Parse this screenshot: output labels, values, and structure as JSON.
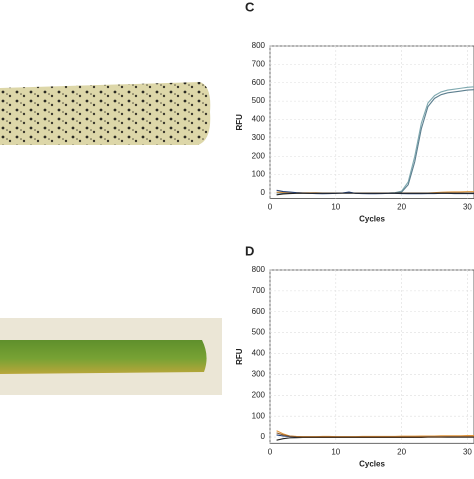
{
  "chart_data": [
    {
      "type": "line",
      "panel": "C",
      "x_label": "Cycles",
      "y_label": "RFU",
      "x": [
        1,
        2,
        3,
        4,
        5,
        6,
        7,
        8,
        9,
        10,
        11,
        12,
        13,
        14,
        15,
        16,
        17,
        18,
        19,
        20,
        21,
        22,
        23,
        24,
        25,
        26,
        27,
        28,
        29,
        30,
        31
      ],
      "series": [
        {
          "color": "#7fa9b0",
          "values": [
            0,
            0,
            0,
            0,
            0,
            0,
            0,
            0,
            0,
            0,
            0,
            0,
            0,
            0,
            0,
            0,
            0,
            0,
            2,
            10,
            60,
            200,
            380,
            490,
            530,
            550,
            560,
            565,
            570,
            575,
            578
          ]
        },
        {
          "color": "#5d7f8f",
          "values": [
            0,
            0,
            0,
            0,
            0,
            0,
            0,
            0,
            0,
            0,
            0,
            0,
            0,
            0,
            0,
            0,
            0,
            0,
            1,
            5,
            45,
            170,
            350,
            470,
            515,
            535,
            545,
            550,
            555,
            560,
            562
          ]
        },
        {
          "color": "#e0953a",
          "values": [
            5,
            3,
            2,
            2,
            1,
            1,
            1,
            0,
            0,
            0,
            0,
            0,
            0,
            0,
            0,
            0,
            0,
            0,
            0,
            0,
            0,
            0,
            0,
            0,
            2,
            4,
            5,
            6,
            6,
            7,
            7
          ]
        },
        {
          "color": "#1f3f7a",
          "values": [
            15,
            8,
            5,
            2,
            0,
            -2,
            -3,
            -4,
            -3,
            -2,
            0,
            5,
            -2,
            -3,
            -4,
            -4,
            -3,
            -2,
            -2,
            -3,
            -4,
            -4,
            -4,
            -3,
            -3,
            -2,
            -2,
            -3,
            -3,
            -3,
            -3
          ]
        },
        {
          "color": "#222222",
          "values": [
            -10,
            -5,
            -3,
            -2,
            -2,
            -2,
            -1,
            -1,
            -1,
            -1,
            -1,
            -1,
            -1,
            -1,
            -1,
            -1,
            -1,
            -1,
            -1,
            -1,
            -1,
            -1,
            -1,
            -1,
            -1,
            -1,
            -1,
            -1,
            -1,
            -1,
            -1
          ]
        }
      ],
      "xlim": [
        0,
        31
      ],
      "xticks": [
        0,
        10,
        20,
        30
      ],
      "ylim": [
        -30,
        800
      ],
      "yticks": [
        0,
        100,
        200,
        300,
        400,
        500,
        600,
        700,
        800
      ],
      "grid": true
    },
    {
      "type": "line",
      "panel": "D",
      "x_label": "Cycles",
      "y_label": "RFU",
      "x": [
        1,
        2,
        3,
        4,
        5,
        6,
        7,
        8,
        9,
        10,
        11,
        12,
        13,
        14,
        15,
        16,
        17,
        18,
        19,
        20,
        21,
        22,
        23,
        24,
        25,
        26,
        27,
        28,
        29,
        30,
        31
      ],
      "series": [
        {
          "color": "#e0953a",
          "values": [
            30,
            15,
            5,
            3,
            2,
            2,
            2,
            3,
            3,
            2,
            2,
            2,
            2,
            3,
            3,
            3,
            3,
            3,
            3,
            4,
            4,
            4,
            5,
            5,
            5,
            6,
            6,
            6,
            6,
            7,
            7
          ]
        },
        {
          "color": "#1f3f7a",
          "values": [
            10,
            5,
            2,
            0,
            -1,
            -1,
            -1,
            -1,
            -1,
            -1,
            0,
            0,
            0,
            0,
            0,
            0,
            0,
            0,
            0,
            0,
            0,
            0,
            0,
            1,
            1,
            1,
            2,
            2,
            2,
            2,
            2
          ]
        },
        {
          "color": "#222222",
          "values": [
            -15,
            -8,
            -4,
            -3,
            -2,
            -2,
            -2,
            -2,
            -2,
            -2,
            -2,
            -2,
            -2,
            -2,
            -2,
            -2,
            -2,
            -2,
            -2,
            -2,
            -2,
            -2,
            -2,
            -1,
            -1,
            -1,
            -1,
            -1,
            -1,
            -1,
            -1
          ]
        },
        {
          "color": "#8a5a2b",
          "values": [
            20,
            10,
            4,
            2,
            1,
            1,
            1,
            1,
            1,
            1,
            1,
            1,
            1,
            1,
            1,
            1,
            1,
            1,
            1,
            1,
            1,
            1,
            1,
            1,
            1,
            1,
            2,
            2,
            2,
            2,
            2
          ]
        }
      ],
      "xlim": [
        0,
        31
      ],
      "xticks": [
        0,
        10,
        20,
        30
      ],
      "ylim": [
        -30,
        800
      ],
      "yticks": [
        0,
        100,
        200,
        300,
        400,
        500,
        600,
        700,
        800
      ],
      "grid": true
    }
  ]
}
